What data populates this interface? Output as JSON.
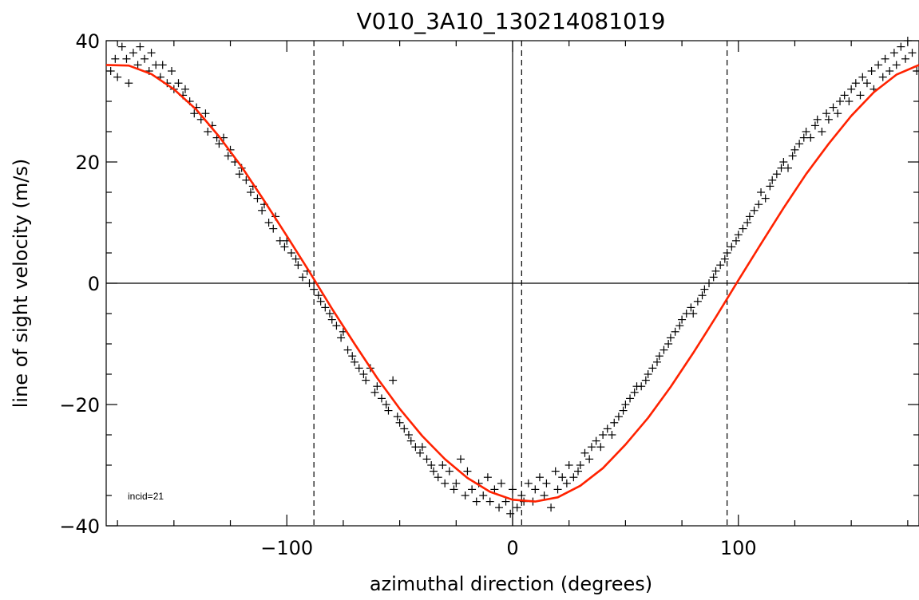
{
  "chart_data": {
    "type": "scatter",
    "title": "V010_3A10_130214081019",
    "xlabel": "azimuthal direction (degrees)",
    "ylabel": "line of sight velocity (m/s)",
    "xlim": [
      -180,
      180
    ],
    "ylim": [
      -40,
      40
    ],
    "x_ticks": [
      -100,
      0,
      100
    ],
    "x_tick_labels": [
      "−100",
      "0",
      "100"
    ],
    "y_ticks": [
      -40,
      -20,
      0,
      20,
      40
    ],
    "y_tick_labels": [
      "−40",
      "−20",
      "0",
      "20",
      "40"
    ],
    "grid": false,
    "annotation": "incid=21",
    "reference_lines": {
      "horizontal_solid": [
        0
      ],
      "vertical_solid": [
        0
      ],
      "vertical_dashed": [
        -88,
        4,
        95
      ]
    },
    "fit": {
      "name": "fit",
      "color": "#ff2200",
      "x": [
        -180,
        -170,
        -160,
        -150,
        -140,
        -130,
        -120,
        -110,
        -100,
        -90,
        -80,
        -70,
        -60,
        -50,
        -40,
        -30,
        -20,
        -10,
        0,
        10,
        20,
        30,
        40,
        50,
        60,
        70,
        80,
        90,
        100,
        110,
        120,
        130,
        140,
        150,
        160,
        170,
        180
      ],
      "y": [
        36.0,
        35.9,
        34.5,
        32.0,
        28.6,
        24.2,
        19.2,
        13.6,
        7.8,
        1.9,
        -4.2,
        -10.0,
        -15.6,
        -20.7,
        -25.2,
        -29.0,
        -32.1,
        -34.4,
        -35.7,
        -36.0,
        -35.3,
        -33.4,
        -30.5,
        -26.6,
        -22.2,
        -17.1,
        -11.5,
        -5.6,
        0.5,
        6.5,
        12.4,
        18.0,
        23.0,
        27.6,
        31.5,
        34.4,
        36.0
      ]
    },
    "scatter_series": {
      "name": "measurements",
      "color": "#000000",
      "marker": "+",
      "points": [
        [
          -179,
          41
        ],
        [
          -178,
          35
        ],
        [
          -176,
          37
        ],
        [
          -175,
          34
        ],
        [
          -173,
          39
        ],
        [
          -171,
          37
        ],
        [
          -170,
          33
        ],
        [
          -168,
          38
        ],
        [
          -166,
          36
        ],
        [
          -165,
          39
        ],
        [
          -163,
          37
        ],
        [
          -161,
          35
        ],
        [
          -160,
          38
        ],
        [
          -158,
          36
        ],
        [
          -156,
          34
        ],
        [
          -155,
          36
        ],
        [
          -153,
          33
        ],
        [
          -151,
          35
        ],
        [
          -150,
          32
        ],
        [
          -148,
          33
        ],
        [
          -146,
          31
        ],
        [
          -145,
          32
        ],
        [
          -143,
          30
        ],
        [
          -141,
          28
        ],
        [
          -140,
          29
        ],
        [
          -138,
          27
        ],
        [
          -136,
          28
        ],
        [
          -135,
          25
        ],
        [
          -133,
          26
        ],
        [
          -131,
          24
        ],
        [
          -130,
          23
        ],
        [
          -128,
          24
        ],
        [
          -126,
          21
        ],
        [
          -125,
          22
        ],
        [
          -123,
          20
        ],
        [
          -121,
          18
        ],
        [
          -120,
          19
        ],
        [
          -118,
          17
        ],
        [
          -116,
          15
        ],
        [
          -115,
          16
        ],
        [
          -113,
          14
        ],
        [
          -111,
          12
        ],
        [
          -110,
          13
        ],
        [
          -108,
          10
        ],
        [
          -106,
          9
        ],
        [
          -105,
          11
        ],
        [
          -103,
          7
        ],
        [
          -101,
          6
        ],
        [
          -100,
          7
        ],
        [
          -98,
          5
        ],
        [
          -96,
          4
        ],
        [
          -95,
          3
        ],
        [
          -93,
          1
        ],
        [
          -91,
          2
        ],
        [
          -90,
          0
        ],
        [
          -88,
          -1
        ],
        [
          -86,
          -2
        ],
        [
          -85,
          -3
        ],
        [
          -83,
          -4
        ],
        [
          -81,
          -5
        ],
        [
          -80,
          -6
        ],
        [
          -78,
          -7
        ],
        [
          -76,
          -9
        ],
        [
          -75,
          -8
        ],
        [
          -73,
          -11
        ],
        [
          -71,
          -12
        ],
        [
          -70,
          -13
        ],
        [
          -68,
          -14
        ],
        [
          -66,
          -15
        ],
        [
          -65,
          -16
        ],
        [
          -63,
          -14
        ],
        [
          -61,
          -18
        ],
        [
          -60,
          -17
        ],
        [
          -58,
          -19
        ],
        [
          -56,
          -20
        ],
        [
          -55,
          -21
        ],
        [
          -53,
          -16
        ],
        [
          -51,
          -22
        ],
        [
          -50,
          -23
        ],
        [
          -48,
          -24
        ],
        [
          -46,
          -25
        ],
        [
          -45,
          -26
        ],
        [
          -43,
          -27
        ],
        [
          -41,
          -28
        ],
        [
          -40,
          -27
        ],
        [
          -38,
          -29
        ],
        [
          -36,
          -30
        ],
        [
          -35,
          -31
        ],
        [
          -33,
          -32
        ],
        [
          -31,
          -30
        ],
        [
          -30,
          -33
        ],
        [
          -28,
          -31
        ],
        [
          -26,
          -34
        ],
        [
          -25,
          -33
        ],
        [
          -23,
          -29
        ],
        [
          -21,
          -35
        ],
        [
          -20,
          -31
        ],
        [
          -18,
          -34
        ],
        [
          -16,
          -36
        ],
        [
          -15,
          -33
        ],
        [
          -13,
          -35
        ],
        [
          -11,
          -32
        ],
        [
          -10,
          -36
        ],
        [
          -8,
          -34
        ],
        [
          -6,
          -37
        ],
        [
          -5,
          -33
        ],
        [
          -3,
          -36
        ],
        [
          -1,
          -38
        ],
        [
          0,
          -34
        ],
        [
          2,
          -37
        ],
        [
          4,
          -35
        ],
        [
          5,
          -36
        ],
        [
          7,
          -33
        ],
        [
          9,
          -36
        ],
        [
          10,
          -34
        ],
        [
          12,
          -32
        ],
        [
          14,
          -35
        ],
        [
          15,
          -33
        ],
        [
          17,
          -37
        ],
        [
          19,
          -31
        ],
        [
          20,
          -34
        ],
        [
          22,
          -32
        ],
        [
          24,
          -33
        ],
        [
          25,
          -30
        ],
        [
          27,
          -32
        ],
        [
          29,
          -31
        ],
        [
          30,
          -30
        ],
        [
          32,
          -28
        ],
        [
          34,
          -29
        ],
        [
          35,
          -27
        ],
        [
          37,
          -26
        ],
        [
          39,
          -27
        ],
        [
          40,
          -25
        ],
        [
          42,
          -24
        ],
        [
          44,
          -25
        ],
        [
          45,
          -23
        ],
        [
          47,
          -22
        ],
        [
          49,
          -21
        ],
        [
          50,
          -20
        ],
        [
          52,
          -19
        ],
        [
          54,
          -18
        ],
        [
          55,
          -17
        ],
        [
          57,
          -17
        ],
        [
          59,
          -16
        ],
        [
          60,
          -15
        ],
        [
          62,
          -14
        ],
        [
          64,
          -13
        ],
        [
          65,
          -12
        ],
        [
          67,
          -11
        ],
        [
          69,
          -10
        ],
        [
          70,
          -9
        ],
        [
          72,
          -8
        ],
        [
          74,
          -7
        ],
        [
          75,
          -6
        ],
        [
          77,
          -5
        ],
        [
          79,
          -4
        ],
        [
          80,
          -5
        ],
        [
          82,
          -3
        ],
        [
          84,
          -2
        ],
        [
          85,
          -1
        ],
        [
          87,
          0
        ],
        [
          89,
          1
        ],
        [
          90,
          2
        ],
        [
          92,
          3
        ],
        [
          94,
          4
        ],
        [
          95,
          5
        ],
        [
          97,
          6
        ],
        [
          99,
          7
        ],
        [
          100,
          8
        ],
        [
          102,
          9
        ],
        [
          104,
          10
        ],
        [
          105,
          11
        ],
        [
          107,
          12
        ],
        [
          109,
          13
        ],
        [
          110,
          15
        ],
        [
          112,
          14
        ],
        [
          114,
          16
        ],
        [
          115,
          17
        ],
        [
          117,
          18
        ],
        [
          119,
          19
        ],
        [
          120,
          20
        ],
        [
          122,
          19
        ],
        [
          124,
          21
        ],
        [
          125,
          22
        ],
        [
          127,
          23
        ],
        [
          129,
          24
        ],
        [
          130,
          25
        ],
        [
          132,
          24
        ],
        [
          134,
          26
        ],
        [
          135,
          27
        ],
        [
          137,
          25
        ],
        [
          139,
          28
        ],
        [
          140,
          27
        ],
        [
          142,
          29
        ],
        [
          144,
          28
        ],
        [
          145,
          30
        ],
        [
          147,
          31
        ],
        [
          149,
          30
        ],
        [
          150,
          32
        ],
        [
          152,
          33
        ],
        [
          154,
          31
        ],
        [
          155,
          34
        ],
        [
          157,
          33
        ],
        [
          159,
          35
        ],
        [
          160,
          32
        ],
        [
          162,
          36
        ],
        [
          164,
          34
        ],
        [
          165,
          37
        ],
        [
          167,
          35
        ],
        [
          169,
          38
        ],
        [
          170,
          36
        ],
        [
          172,
          39
        ],
        [
          174,
          37
        ],
        [
          175,
          40
        ],
        [
          177,
          38
        ],
        [
          179,
          35
        ]
      ]
    }
  }
}
